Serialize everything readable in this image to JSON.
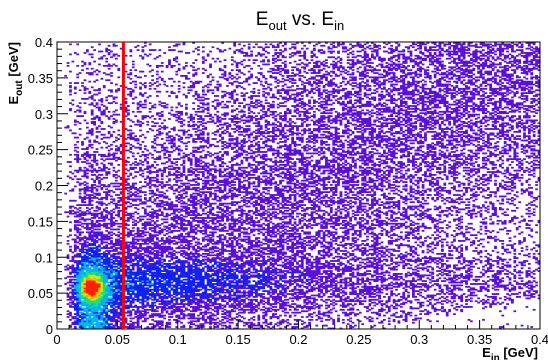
{
  "chart_data": {
    "type": "heatmap",
    "title": {
      "main": "E",
      "main_sub": "out",
      "connector": " vs. E",
      "connector_sub": "in"
    },
    "xlabel": {
      "main": "E",
      "sub": "in",
      "unit": " [GeV]"
    },
    "ylabel": {
      "main": "E",
      "sub": "out",
      "unit": " [GeV]"
    },
    "xlim": [
      0,
      0.4
    ],
    "ylim": [
      0,
      0.4
    ],
    "x_ticks": [
      0,
      0.05,
      0.1,
      0.15,
      0.2,
      0.25,
      0.3,
      0.35,
      0.4
    ],
    "x_tick_labels": [
      "0",
      "0.05",
      "0.1",
      "0.15",
      "0.2",
      "0.25",
      "0.3",
      "0.35",
      "0.4"
    ],
    "y_ticks": [
      0,
      0.05,
      0.1,
      0.15,
      0.2,
      0.25,
      0.3,
      0.35,
      0.4
    ],
    "y_tick_labels": [
      "0",
      "0.05",
      "0.1",
      "0.15",
      "0.2",
      "0.25",
      "0.3",
      "0.35",
      "0.4"
    ],
    "grid": false,
    "colormap": [
      "#ffffff",
      "#5a10d8",
      "#0b23f0",
      "#00b4f0",
      "#20e070",
      "#c8ec10",
      "#ffa000",
      "#ff2000"
    ],
    "density_peak": {
      "x": 0.029,
      "y": 0.058
    },
    "cut_line": {
      "x": 0.055,
      "color": "#ff0000"
    }
  }
}
